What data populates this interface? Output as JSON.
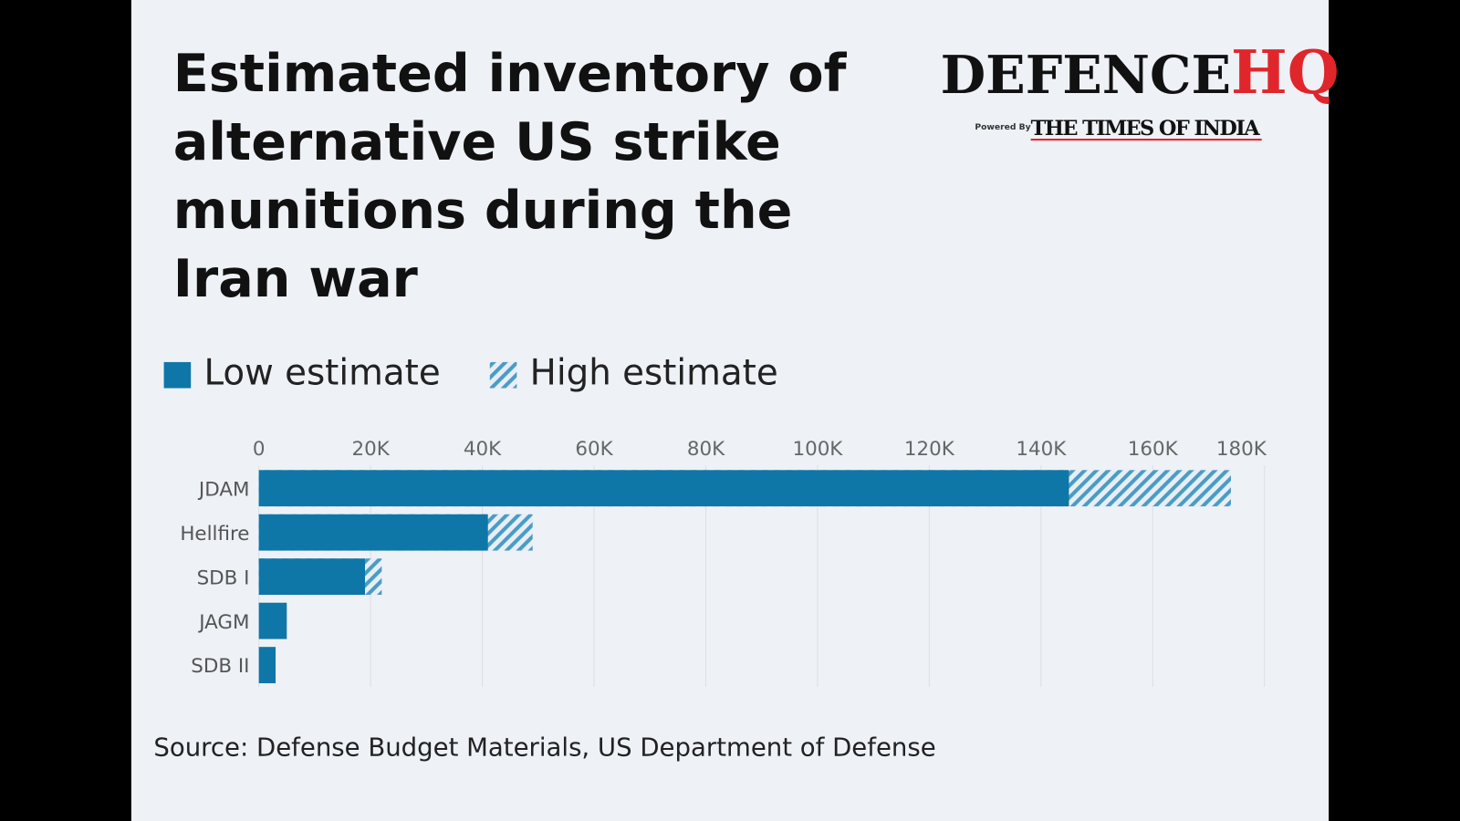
{
  "chart_data": {
    "type": "bar",
    "orientation": "horizontal",
    "title": "Estimated inventory of alternative US strike munitions during the Iran war",
    "categories": [
      "JDAM",
      "Hellfire",
      "SDB I",
      "JAGM",
      "SDB II"
    ],
    "series": [
      {
        "name": "Low estimate",
        "color": "#0f76a8",
        "values": [
          145000,
          41000,
          19000,
          5000,
          3000
        ]
      },
      {
        "name": "High estimate",
        "color": "#4a9cc4",
        "hatched": true,
        "values": [
          174000,
          49000,
          22000,
          null,
          null
        ]
      }
    ],
    "xlim": [
      0,
      180000
    ],
    "xticks": [
      0,
      {
        "value": 20000,
        "label": "20K"
      },
      {
        "value": 40000,
        "label": "40K"
      },
      {
        "value": 60000,
        "label": "60K"
      },
      {
        "value": 80000,
        "label": "80K"
      },
      {
        "value": 100000,
        "label": "100K"
      },
      {
        "value": 120000,
        "label": "120K"
      },
      {
        "value": 140000,
        "label": "140K"
      },
      {
        "value": 160000,
        "label": "160K"
      },
      {
        "value": 180000,
        "label": "180K"
      }
    ],
    "grid": true,
    "source": "Source: Defense Budget Materials, US Department of Defense"
  },
  "logo": {
    "main": "DEFENCE",
    "accent": "HQ",
    "powered": "Powered By",
    "brand": "THE TIMES OF INDIA"
  }
}
